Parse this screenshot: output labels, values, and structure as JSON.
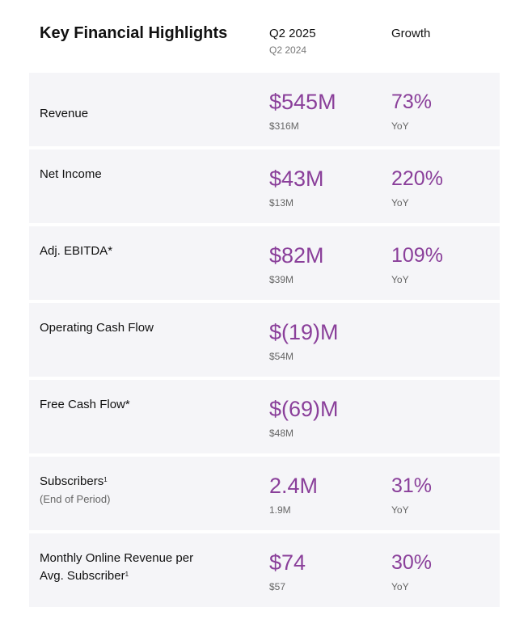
{
  "header": {
    "title": "Key Financial Highlights",
    "current_period": "Q2 2025",
    "prior_period": "Q2 2024",
    "growth_label": "Growth"
  },
  "rows": [
    {
      "label": "Revenue",
      "sup": "",
      "sublabel": "",
      "value": "$545M",
      "prior": "$316M",
      "growth": "73%",
      "growth_unit": "YoY"
    },
    {
      "label": "Net Income",
      "sup": "",
      "sublabel": "",
      "value": "$43M",
      "prior": "$13M",
      "growth": "220%",
      "growth_unit": "YoY"
    },
    {
      "label": "Adj. EBITDA*",
      "sup": "",
      "sublabel": "",
      "value": "$82M",
      "prior": "$39M",
      "growth": "109%",
      "growth_unit": "YoY"
    },
    {
      "label": "Operating Cash Flow",
      "sup": "",
      "sublabel": "",
      "value": "$(19)M",
      "prior": "$54M",
      "growth": "",
      "growth_unit": ""
    },
    {
      "label": "Free Cash Flow*",
      "sup": "",
      "sublabel": "",
      "value": "$(69)M",
      "prior": "$48M",
      "growth": "",
      "growth_unit": ""
    },
    {
      "label": "Subscribers",
      "sup": "1",
      "sublabel": "(End of Period)",
      "value": "2.4M",
      "prior": "1.9M",
      "growth": "31%",
      "growth_unit": "YoY"
    },
    {
      "label": "Monthly Online Revenue per Avg. Subscriber",
      "sup": "1",
      "sublabel": "",
      "value": "$74",
      "prior": "$57",
      "growth": "30%",
      "growth_unit": "YoY"
    }
  ]
}
